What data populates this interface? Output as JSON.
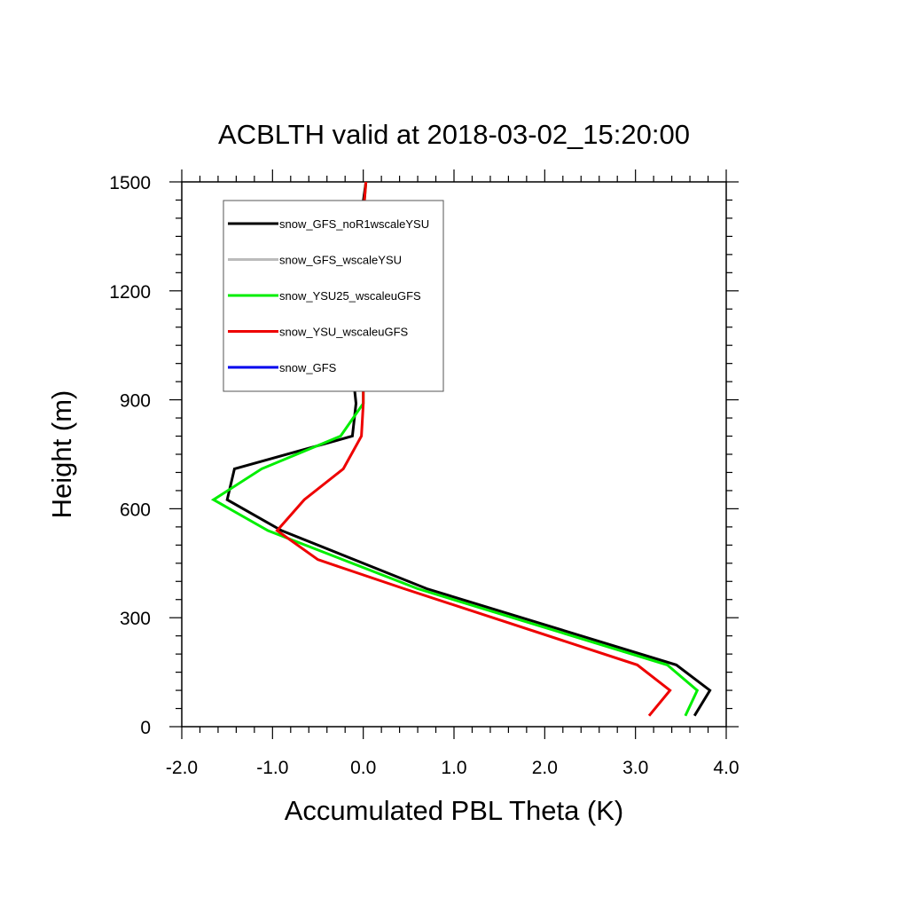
{
  "chart_data": {
    "type": "line",
    "title": "ACBLTH valid at 2018-03-02_15:20:00",
    "xlabel": "Accumulated PBL Theta (K)",
    "ylabel": "Height (m)",
    "xlim": [
      -2.0,
      4.0
    ],
    "ylim": [
      0,
      1500
    ],
    "xticks": [
      -2.0,
      -1.0,
      0.0,
      1.0,
      2.0,
      3.0,
      4.0
    ],
    "xtick_labels": [
      "-2.0",
      "-1.0",
      "0.0",
      "1.0",
      "2.0",
      "3.0",
      "4.0"
    ],
    "yticks": [
      0,
      300,
      600,
      900,
      1200,
      1500
    ],
    "ytick_labels": [
      "0",
      "300",
      "600",
      "900",
      "1200",
      "1500"
    ],
    "grid": false,
    "legend_position": "top-left",
    "series": [
      {
        "name": "snow_GFS_noR1wscaleYSU",
        "color": "#000000",
        "points": [
          [
            3.65,
            30
          ],
          [
            3.82,
            100
          ],
          [
            3.45,
            170
          ],
          [
            0.7,
            380
          ],
          [
            -0.9,
            540
          ],
          [
            -1.5,
            625
          ],
          [
            -1.42,
            710
          ],
          [
            -0.12,
            800
          ],
          [
            -0.08,
            890
          ],
          [
            -0.12,
            985
          ],
          [
            -0.05,
            1210
          ],
          [
            -0.02,
            1410
          ],
          [
            0.03,
            1500
          ]
        ]
      },
      {
        "name": "snow_GFS_wscaleYSU",
        "color": "#bbbbbb",
        "points": []
      },
      {
        "name": "snow_YSU25_wscaleuGFS",
        "color": "#00ee00",
        "points": [
          [
            3.55,
            30
          ],
          [
            3.68,
            100
          ],
          [
            3.35,
            170
          ],
          [
            0.6,
            380
          ],
          [
            -1.05,
            540
          ],
          [
            -1.65,
            625
          ],
          [
            -1.12,
            710
          ],
          [
            -0.25,
            800
          ],
          [
            0.0,
            890
          ],
          [
            0.0,
            985
          ],
          [
            0.0,
            1210
          ],
          [
            0.0,
            1410
          ],
          [
            0.03,
            1500
          ]
        ]
      },
      {
        "name": "snow_YSU_wscaleuGFS",
        "color": "#ee0000",
        "points": [
          [
            3.15,
            30
          ],
          [
            3.38,
            100
          ],
          [
            3.02,
            170
          ],
          [
            0.45,
            380
          ],
          [
            -0.5,
            460
          ],
          [
            -0.95,
            540
          ],
          [
            -0.65,
            625
          ],
          [
            -0.22,
            710
          ],
          [
            -0.02,
            800
          ],
          [
            0.0,
            890
          ],
          [
            0.0,
            985
          ],
          [
            0.0,
            1210
          ],
          [
            0.0,
            1410
          ],
          [
            0.03,
            1500
          ]
        ]
      },
      {
        "name": "snow_GFS",
        "color": "#0000ee",
        "points": []
      }
    ]
  }
}
